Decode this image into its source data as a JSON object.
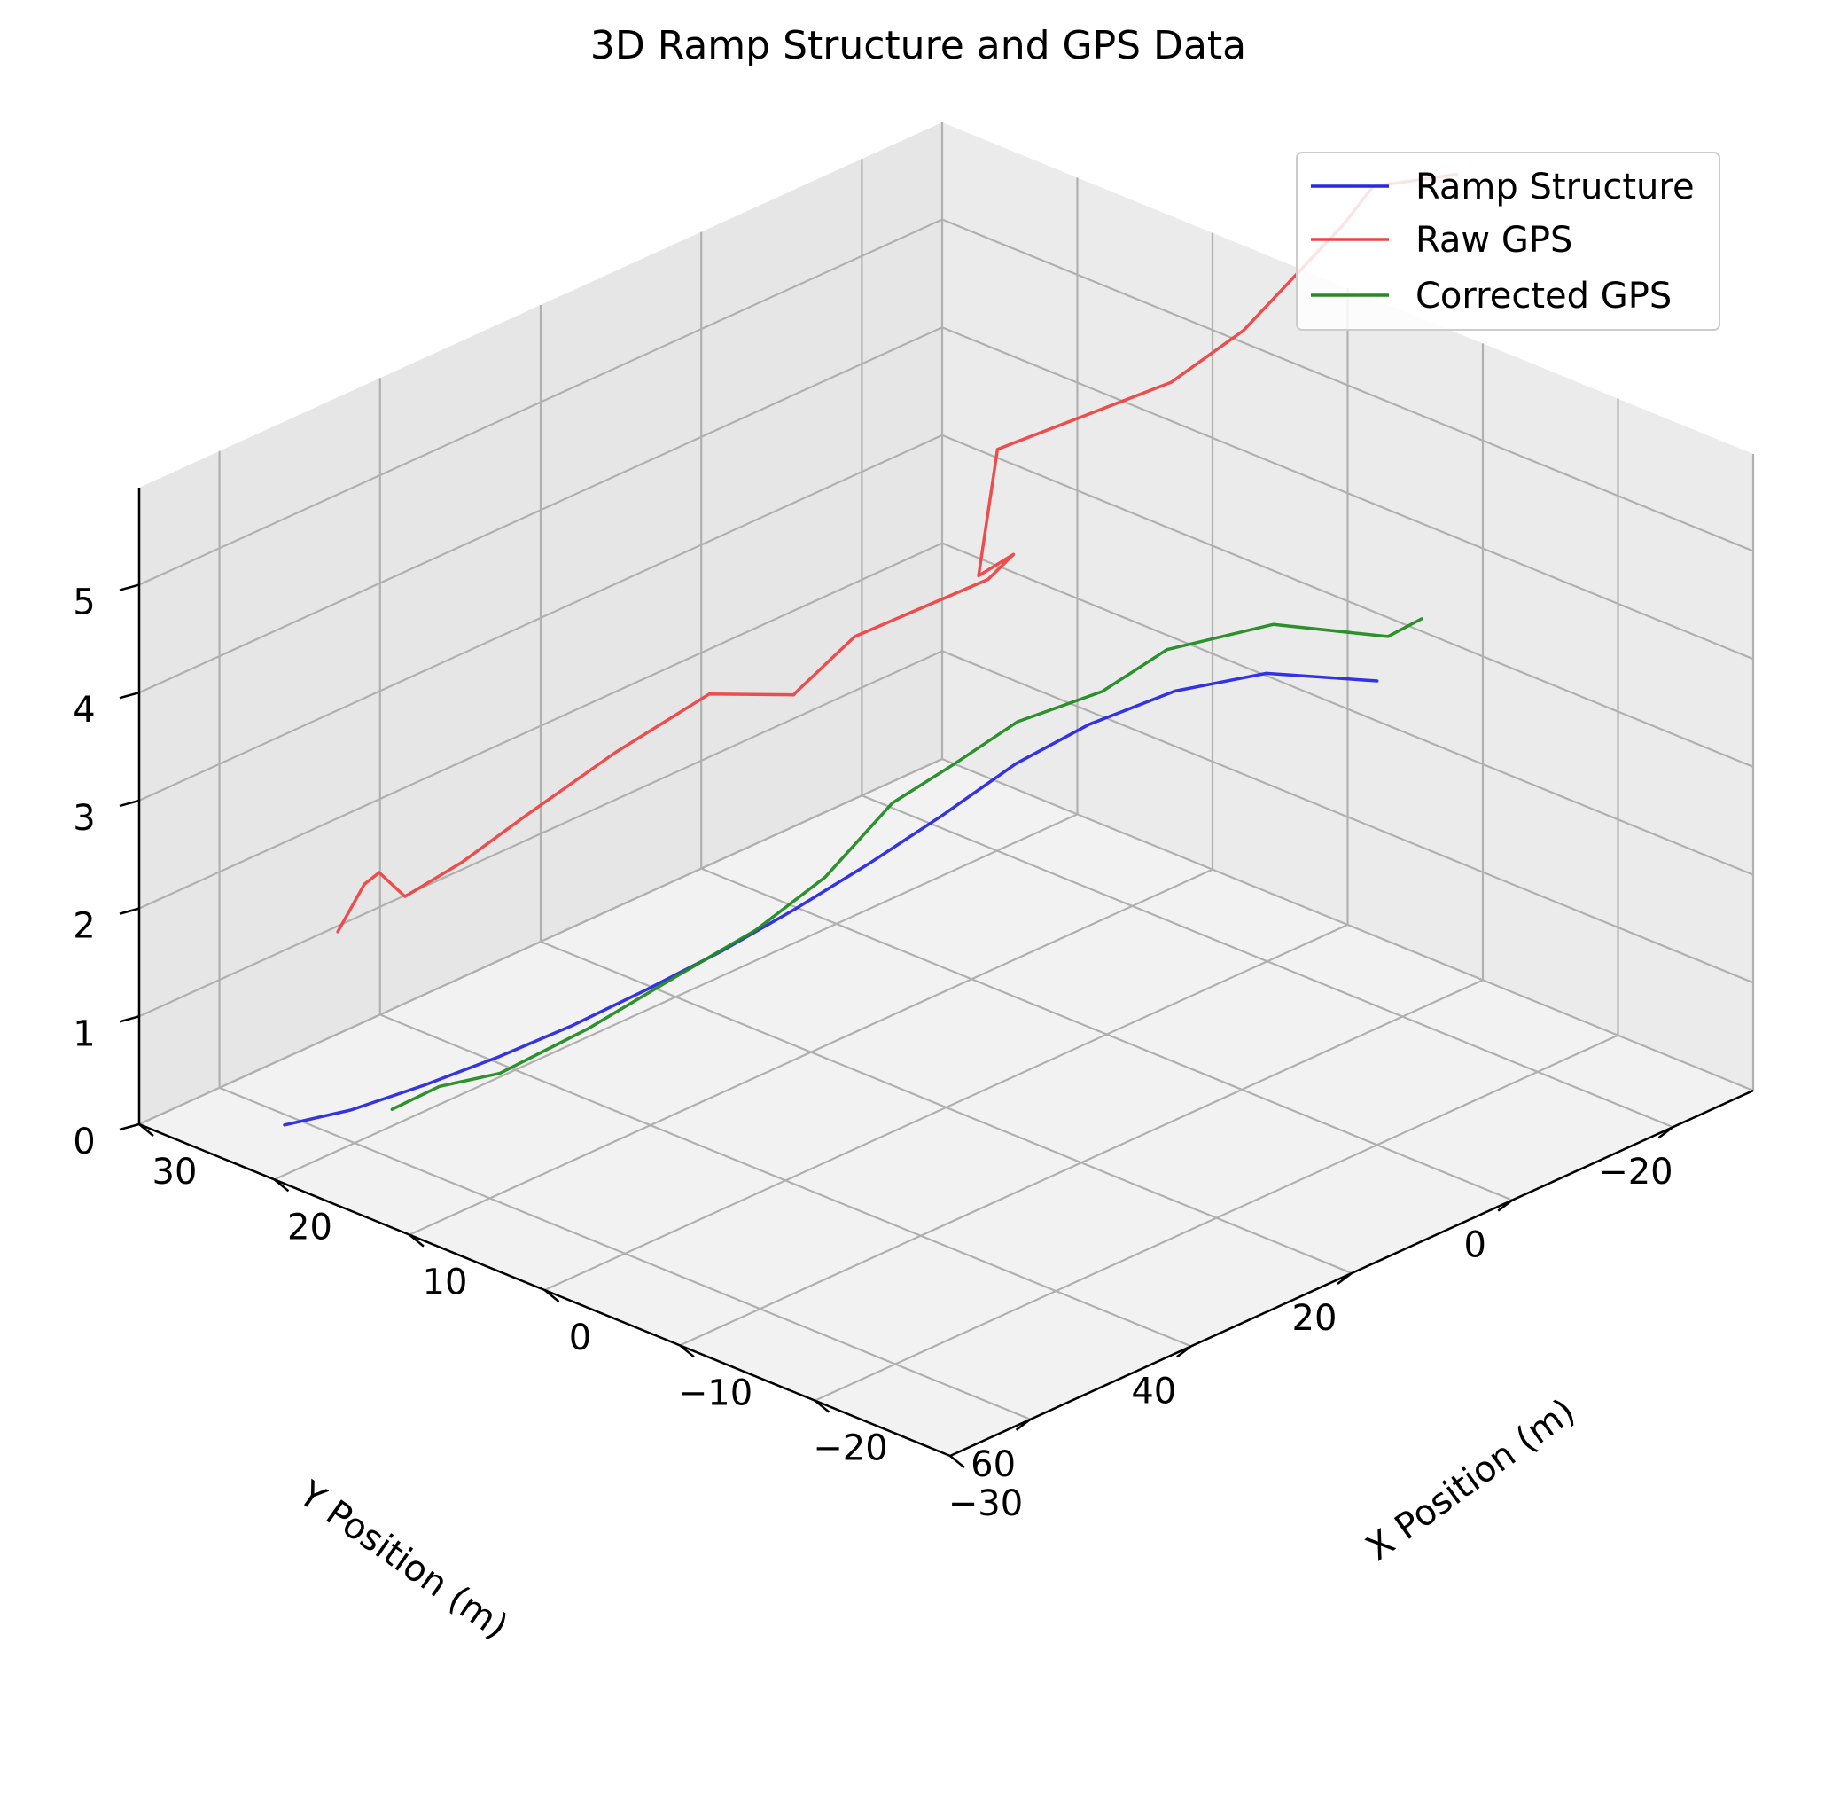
{
  "chart_data": {
    "type": "line",
    "projection": "3d",
    "title": "3D Ramp Structure and GPS Data",
    "xlabel": "X Position (m)",
    "ylabel": "Y Position (m)",
    "zlabel": "",
    "xlim": [
      -30,
      30
    ],
    "ylim": [
      -30,
      70
    ],
    "zlim": [
      0,
      5.9
    ],
    "x_ticks": [
      -30,
      -20,
      -10,
      0,
      10,
      20,
      30
    ],
    "y_ticks": [
      -20,
      0,
      20,
      40,
      60
    ],
    "z_ticks": [
      0,
      1,
      2,
      3,
      4,
      5
    ],
    "grid": true,
    "legend_position": "top-right",
    "series": [
      {
        "name": "Ramp Structure",
        "color": "#2929e0",
        "x": [
          -20.0,
          -13.0,
          -8.0,
          -4.0,
          -1.0,
          1.5,
          4.0,
          6.5,
          9.0,
          11.5,
          14.0,
          16.5,
          19.0,
          21.5,
          24.0
        ],
        "y": [
          0.0,
          2.0,
          5.0,
          9.0,
          13.0,
          18.0,
          23.0,
          28.0,
          33.0,
          38.0,
          43.0,
          48.0,
          53.0,
          58.0,
          62.0
        ],
        "z": [
          4.3,
          4.08,
          3.76,
          3.38,
          3.0,
          2.56,
          2.15,
          1.77,
          1.42,
          1.11,
          0.82,
          0.57,
          0.35,
          0.16,
          0.03
        ]
      },
      {
        "name": "Raw GPS",
        "color": "#ee4444",
        "x": [
          -25.0,
          -20.0,
          -17.5,
          -12.5,
          -9.5,
          -3.2,
          -2.4,
          -3.5,
          -2.8,
          3.5,
          7.0,
          8.0,
          11.0,
          15.0,
          18.0,
          21.0,
          24.0,
          26.5,
          27.0,
          26.0
        ],
        "y": [
          -1.5,
          0.5,
          0.0,
          4.0,
          8.0,
          19.0,
          20.0,
          17.5,
          19.5,
          25.5,
          27.0,
          25.5,
          31.0,
          36.0,
          42.0,
          45.0,
          47.0,
          46.0,
          47.0,
          52.0
        ],
        "z": [
          9.2,
          8.9,
          8.4,
          7.3,
          6.8,
          6.23,
          5.05,
          5.22,
          5.02,
          4.37,
          3.72,
          3.6,
          3.64,
          3.06,
          2.53,
          2.04,
          1.64,
          1.7,
          1.6,
          1.38
        ]
      },
      {
        "name": "Corrected GPS",
        "color": "#228b22",
        "x": [
          -21.5,
          -20.5,
          -15.0,
          -9.5,
          -6.5,
          -3.2,
          -0.5,
          1.0,
          3.0,
          5.5,
          8.5,
          12.0,
          15.5,
          18.5,
          20.5
        ],
        "y": [
          -3.0,
          -0.5,
          4.5,
          8.5,
          11.5,
          16.5,
          20.0,
          25.0,
          30.0,
          34.5,
          39.5,
          44.5,
          49.5,
          52.0,
          54.5
        ],
        "z": [
          4.85,
          4.72,
          4.72,
          4.34,
          3.9,
          3.62,
          3.2,
          2.94,
          2.32,
          1.85,
          1.43,
          0.94,
          0.52,
          0.33,
          0.1
        ]
      }
    ]
  }
}
